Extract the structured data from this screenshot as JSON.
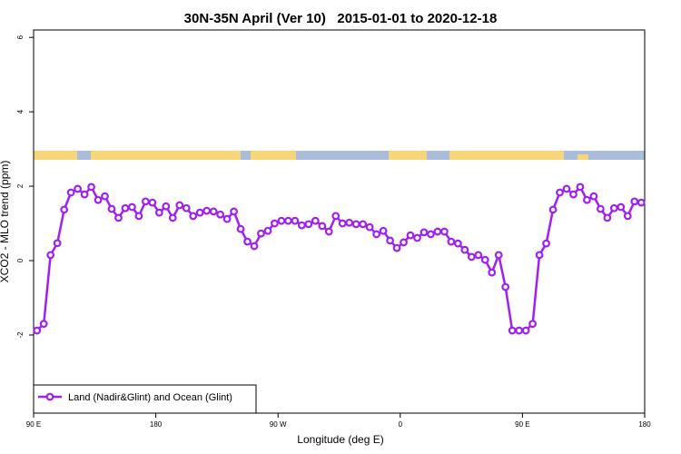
{
  "chart_data": {
    "type": "line",
    "title": "30N-35N April (Ver 10)   2015-01-01 to 2020-12-18",
    "x_label": "Longitude (deg E)",
    "y_label": "XCO2 - MLO trend (ppm)",
    "xlim": [
      90,
      540
    ],
    "ylim": [
      -4.1,
      6.2
    ],
    "xticks": [
      {
        "value": 90,
        "label": "90 E"
      },
      180,
      {
        "value": 270,
        "label": "90 W"
      },
      {
        "value": 360,
        "label": "0"
      },
      {
        "value": 450,
        "label": "90 E"
      },
      {
        "value": 540,
        "label": "180"
      }
    ],
    "yticks": [
      -2,
      0,
      2,
      4,
      6
    ],
    "legend": "bottomleft",
    "x": [
      92.5,
      97.5,
      102.5,
      107.5,
      112.5,
      117.5,
      122.5,
      127.5,
      132.5,
      137.5,
      142.5,
      147.5,
      152.5,
      157.5,
      162.5,
      167.5,
      172.5,
      177.5,
      182.5,
      187.5,
      192.5,
      197.5,
      202.5,
      207.5,
      212.5,
      217.5,
      222.5,
      227.5,
      232.5,
      237.5,
      242.5,
      247.5,
      252.5,
      257.5,
      262.5,
      267.5,
      272.5,
      277.5,
      282.5,
      287.5,
      292.5,
      297.5,
      302.5,
      307.5,
      312.5,
      317.5,
      322.5,
      327.5,
      332.5,
      337.5,
      342.5,
      347.5,
      352.5,
      357.5,
      362.5,
      367.5,
      372.5,
      377.5,
      382.5,
      387.5,
      392.5,
      397.5,
      402.5,
      407.5,
      412.5,
      417.5,
      422.5,
      427.5,
      432.5,
      437.5,
      442.5,
      447.5,
      452.5,
      457.5,
      462.5,
      467.5,
      472.5,
      477.5,
      482.5,
      487.5,
      492.5,
      497.5,
      502.5,
      507.5,
      512.5,
      517.5,
      522.5,
      527.5,
      532.5,
      537.5
    ],
    "series": [
      {
        "name": "Land (Nadir&Glint) and Ocean (Glint)",
        "color": "#a020f0",
        "values": [
          -1.88,
          -1.7,
          0.15,
          0.47,
          1.37,
          1.83,
          1.93,
          1.78,
          1.98,
          1.63,
          1.73,
          1.39,
          1.15,
          1.41,
          1.44,
          1.2,
          1.59,
          1.56,
          1.29,
          1.46,
          1.15,
          1.49,
          1.41,
          1.2,
          1.29,
          1.34,
          1.32,
          1.24,
          1.12,
          1.32,
          0.85,
          0.51,
          0.39,
          0.73,
          0.8,
          1.0,
          1.07,
          1.07,
          1.07,
          0.95,
          0.98,
          1.07,
          0.93,
          0.78,
          1.2,
          1.0,
          1.02,
          0.98,
          0.98,
          0.9,
          0.71,
          0.8,
          0.54,
          0.34,
          0.49,
          0.68,
          0.61,
          0.76,
          0.71,
          0.78,
          0.78,
          0.51,
          0.46,
          0.29,
          0.1,
          0.15,
          0.02,
          -0.32,
          0.15,
          -0.71,
          -1.88,
          -1.88,
          -1.88,
          -1.7,
          0.15,
          0.46,
          1.37,
          1.83,
          1.93,
          1.78,
          1.98,
          1.63,
          1.73,
          1.39,
          1.15,
          1.41,
          1.44,
          1.2,
          1.59,
          1.56
        ]
      }
    ]
  }
}
